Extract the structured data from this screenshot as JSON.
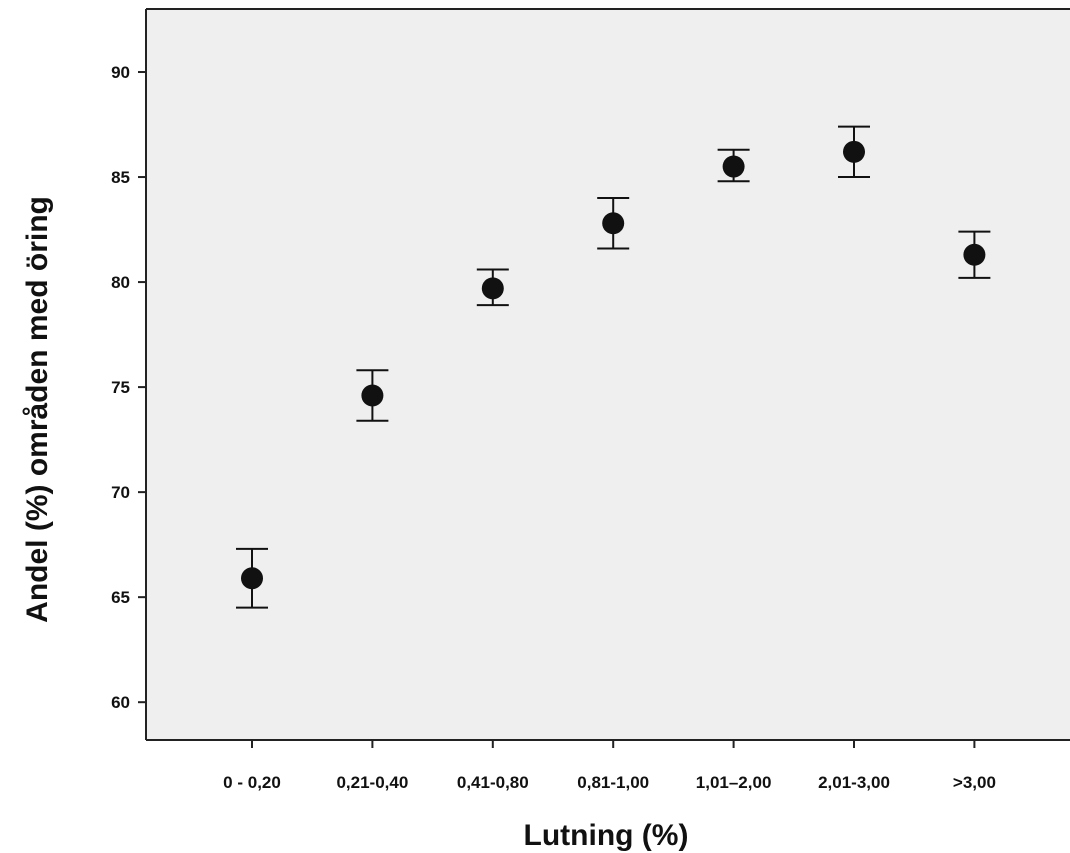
{
  "chart_data": {
    "type": "scatter",
    "title": "",
    "xlabel": "Lutning (%)",
    "ylabel": "Andel (%) områden med öring",
    "categories": [
      "0 - 0,20",
      "0,21-0,40",
      "0,41-0,80",
      "0,81-1,00",
      "1,01–2,00",
      "2,01-3,00",
      ">3,00"
    ],
    "series": [
      {
        "values": [
          65.9,
          74.6,
          79.7,
          82.8,
          85.5,
          86.2,
          81.3
        ],
        "error_low": [
          64.5,
          73.4,
          78.9,
          81.6,
          84.8,
          85.0,
          80.2
        ],
        "error_high": [
          67.3,
          75.8,
          80.6,
          84.0,
          86.3,
          87.4,
          82.4
        ]
      }
    ],
    "ylim": [
      58.2,
      93
    ],
    "yticks": [
      60,
      65,
      70,
      75,
      80,
      85,
      90
    ],
    "grid": false,
    "legend": "none",
    "colors": {
      "marker": "#111111",
      "plot_background": "#efefef",
      "axis": "#222222"
    }
  }
}
